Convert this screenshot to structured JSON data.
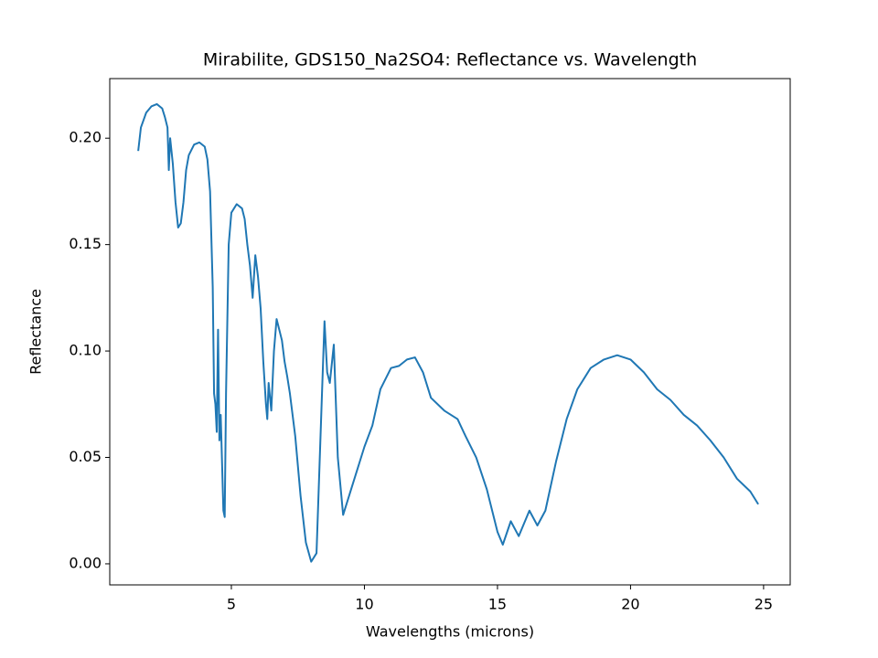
{
  "chart_data": {
    "type": "line",
    "title": "Mirabilite, GDS150_Na2SO4: Reflectance vs. Wavelength",
    "x_label": "Wavelengths (microns)",
    "y_label": "Reflectance",
    "xlim": [
      0.43,
      26.0
    ],
    "ylim": [
      -0.0099,
      0.228
    ],
    "xticks": [
      5,
      10,
      15,
      20,
      25
    ],
    "yticks": [
      {
        "value": 0,
        "label": "0.00"
      },
      0.05,
      {
        "value": 0.1,
        "label": "0.10"
      },
      0.15,
      {
        "value": 0.2,
        "label": "0.20"
      }
    ],
    "grid": false,
    "series": [
      {
        "color": "#1f77b4",
        "x": [
          1.5,
          1.6,
          1.8,
          2.0,
          2.2,
          2.4,
          2.5,
          2.6,
          2.65,
          2.7,
          2.8,
          2.9,
          3.0,
          3.1,
          3.2,
          3.3,
          3.4,
          3.6,
          3.8,
          4.0,
          4.1,
          4.2,
          4.3,
          4.35,
          4.4,
          4.45,
          4.5,
          4.55,
          4.6,
          4.7,
          4.75,
          4.8,
          4.9,
          5.0,
          5.2,
          5.4,
          5.5,
          5.6,
          5.7,
          5.8,
          5.9,
          6.0,
          6.1,
          6.2,
          6.3,
          6.35,
          6.4,
          6.5,
          6.6,
          6.7,
          6.8,
          6.9,
          7.0,
          7.1,
          7.2,
          7.4,
          7.6,
          7.8,
          8.0,
          8.2,
          8.4,
          8.5,
          8.6,
          8.7,
          8.85,
          9.0,
          9.2,
          9.5,
          9.8,
          10.0,
          10.3,
          10.6,
          11.0,
          11.3,
          11.6,
          11.9,
          12.2,
          12.5,
          13.0,
          13.5,
          13.8,
          14.2,
          14.6,
          15.0,
          15.2,
          15.5,
          15.8,
          16.2,
          16.5,
          16.8,
          17.2,
          17.6,
          18.0,
          18.5,
          19.0,
          19.5,
          20.0,
          20.5,
          21.0,
          21.5,
          22.0,
          22.5,
          23.0,
          23.5,
          24.0,
          24.5,
          24.8
        ],
        "values": [
          0.194,
          0.205,
          0.212,
          0.215,
          0.216,
          0.214,
          0.21,
          0.205,
          0.185,
          0.2,
          0.188,
          0.17,
          0.158,
          0.16,
          0.17,
          0.185,
          0.192,
          0.197,
          0.198,
          0.196,
          0.19,
          0.175,
          0.13,
          0.08,
          0.075,
          0.062,
          0.11,
          0.058,
          0.07,
          0.025,
          0.022,
          0.08,
          0.15,
          0.165,
          0.169,
          0.167,
          0.162,
          0.15,
          0.14,
          0.125,
          0.145,
          0.135,
          0.12,
          0.095,
          0.075,
          0.068,
          0.085,
          0.072,
          0.1,
          0.115,
          0.11,
          0.105,
          0.095,
          0.088,
          0.08,
          0.06,
          0.032,
          0.01,
          0.001,
          0.005,
          0.078,
          0.114,
          0.09,
          0.085,
          0.103,
          0.05,
          0.023,
          0.035,
          0.047,
          0.055,
          0.065,
          0.082,
          0.092,
          0.093,
          0.096,
          0.097,
          0.09,
          0.078,
          0.072,
          0.068,
          0.06,
          0.05,
          0.035,
          0.015,
          0.009,
          0.02,
          0.013,
          0.025,
          0.018,
          0.025,
          0.048,
          0.068,
          0.082,
          0.092,
          0.096,
          0.098,
          0.096,
          0.09,
          0.082,
          0.077,
          0.07,
          0.065,
          0.058,
          0.05,
          0.04,
          0.034,
          0.028
        ]
      }
    ]
  }
}
